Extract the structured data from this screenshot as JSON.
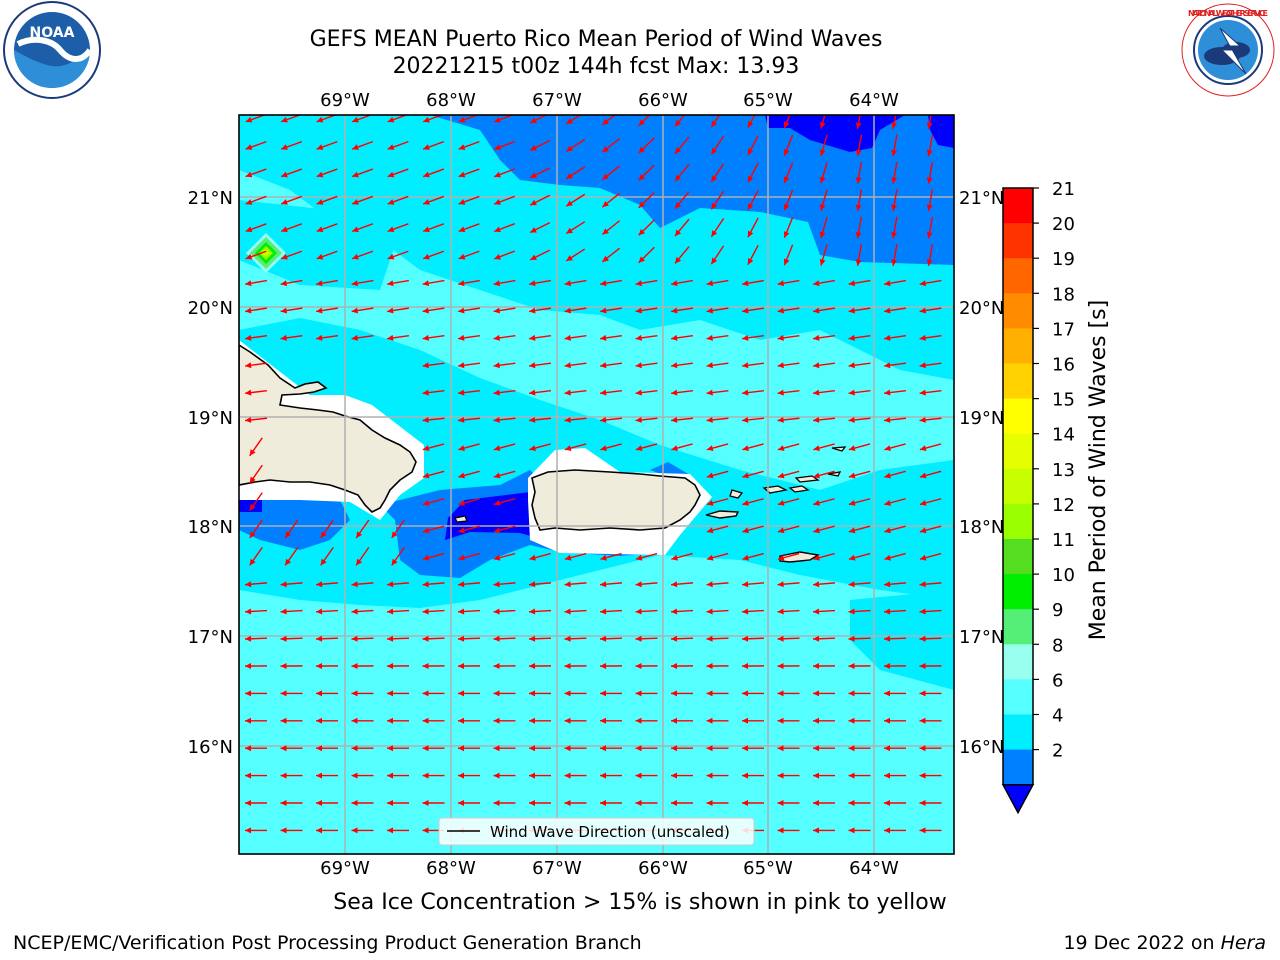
{
  "title": {
    "line1": "GEFS MEAN Puerto Rico Mean Period of Wind Waves",
    "line2": "20221215 t00z 144h fcst   Max: 13.93"
  },
  "map": {
    "lon_ticks": [
      "69°W",
      "68°W",
      "67°W",
      "66°W",
      "65°W",
      "64°W"
    ],
    "lat_ticks": [
      "21°N",
      "20°N",
      "19°N",
      "18°N",
      "17°N",
      "16°N"
    ],
    "legend_label": "Wind Wave Direction (unscaled)",
    "arrow_color": "#ff0000",
    "land_color": "#efecdc",
    "grid_color": "#b0b0b0"
  },
  "colorbar": {
    "label": "Mean Period of Wind Waves [s]",
    "ticks": [
      "21",
      "20",
      "19",
      "18",
      "17",
      "16",
      "15",
      "14",
      "13",
      "12",
      "11",
      "10",
      "9",
      "8",
      "6",
      "4",
      "2"
    ],
    "colors": [
      "#ff0000",
      "#ff3300",
      "#ff6600",
      "#ff8c00",
      "#ffb000",
      "#ffd200",
      "#ffff00",
      "#e6ff00",
      "#c8ff00",
      "#99ff00",
      "#55dd22",
      "#00ee00",
      "#55ee77",
      "#99ffee",
      "#55ffff",
      "#00eeff",
      "#0080ff",
      "#0000ff"
    ]
  },
  "footer": {
    "note": "Sea Ice Concentration > 15% is shown in pink to yellow",
    "left": "NCEP/EMC/Verification Post Processing Product Generation Branch",
    "date": "19 Dec 2022 on ",
    "host": "Hera"
  },
  "logos": {
    "noaa": "NOAA",
    "nws": "NATIONAL WEATHER SERVICE"
  }
}
